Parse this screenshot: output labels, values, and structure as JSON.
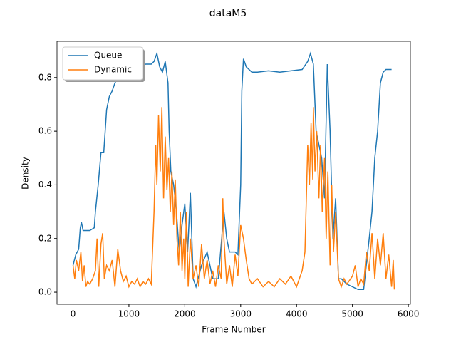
{
  "chart_data": {
    "type": "line",
    "title": "dataM5",
    "x_label": "Frame Number",
    "y_label": "Density",
    "xlim": [
      -287,
      6037
    ],
    "ylim": [
      -0.045,
      0.935
    ],
    "xticks": [
      0,
      1000,
      2000,
      3000,
      4000,
      5000,
      6000
    ],
    "yticks": [
      {
        "value": 0,
        "label": "0.0"
      },
      0.2,
      0.4,
      0.6,
      0.8
    ],
    "legend": "upper left",
    "series": [
      {
        "name": "Queue",
        "color": "#1f77b4",
        "x": [
          0,
          50,
          100,
          130,
          150,
          180,
          300,
          380,
          400,
          450,
          500,
          550,
          600,
          650,
          700,
          750,
          800,
          900,
          1000,
          1100,
          1200,
          1300,
          1400,
          1450,
          1500,
          1550,
          1600,
          1650,
          1700,
          1720,
          1750,
          1800,
          1850,
          1900,
          1950,
          2000,
          2050,
          2100,
          2150,
          2200,
          2300,
          2400,
          2500,
          2600,
          2700,
          2750,
          2800,
          2900,
          2950,
          3000,
          3020,
          3050,
          3100,
          3200,
          3300,
          3500,
          3700,
          3900,
          4100,
          4200,
          4250,
          4300,
          4350,
          4400,
          4450,
          4500,
          4550,
          4600,
          4650,
          4700,
          4750,
          4800,
          4900,
          5000,
          5100,
          5200,
          5300,
          5350,
          5400,
          5450,
          5500,
          5550,
          5600,
          5700
        ],
        "values": [
          0.1,
          0.14,
          0.16,
          0.24,
          0.26,
          0.23,
          0.23,
          0.24,
          0.3,
          0.4,
          0.52,
          0.52,
          0.68,
          0.73,
          0.75,
          0.78,
          0.8,
          0.83,
          0.84,
          0.84,
          0.84,
          0.85,
          0.85,
          0.86,
          0.89,
          0.84,
          0.82,
          0.86,
          0.78,
          0.6,
          0.45,
          0.4,
          0.3,
          0.15,
          0.25,
          0.33,
          0.15,
          0.37,
          0.05,
          0.02,
          0.1,
          0.15,
          0.05,
          0.05,
          0.3,
          0.2,
          0.15,
          0.15,
          0.14,
          0.4,
          0.75,
          0.87,
          0.84,
          0.82,
          0.82,
          0.825,
          0.82,
          0.825,
          0.83,
          0.86,
          0.89,
          0.85,
          0.6,
          0.55,
          0.5,
          0.35,
          0.85,
          0.6,
          0.2,
          0.35,
          0.05,
          0.05,
          0.03,
          0.02,
          0.01,
          0.01,
          0.2,
          0.3,
          0.5,
          0.6,
          0.78,
          0.82,
          0.83,
          0.83
        ]
      },
      {
        "name": "Dynamic",
        "color": "#ff7f0e",
        "x": [
          0,
          30,
          60,
          100,
          140,
          170,
          200,
          230,
          260,
          300,
          350,
          400,
          430,
          460,
          500,
          530,
          560,
          600,
          650,
          700,
          750,
          800,
          850,
          900,
          950,
          1000,
          1050,
          1100,
          1150,
          1200,
          1250,
          1300,
          1350,
          1400,
          1450,
          1480,
          1500,
          1530,
          1560,
          1590,
          1620,
          1650,
          1680,
          1710,
          1740,
          1770,
          1800,
          1830,
          1860,
          1890,
          1920,
          1950,
          1980,
          2000,
          2030,
          2060,
          2100,
          2150,
          2200,
          2250,
          2300,
          2350,
          2400,
          2450,
          2500,
          2550,
          2600,
          2650,
          2680,
          2700,
          2750,
          2800,
          2850,
          2900,
          2950,
          3000,
          3050,
          3100,
          3150,
          3200,
          3300,
          3400,
          3500,
          3600,
          3700,
          3800,
          3900,
          4000,
          4100,
          4150,
          4200,
          4230,
          4260,
          4290,
          4300,
          4330,
          4360,
          4400,
          4430,
          4460,
          4500,
          4530,
          4560,
          4600,
          4630,
          4660,
          4700,
          4750,
          4800,
          4850,
          4900,
          5000,
          5050,
          5100,
          5150,
          5200,
          5250,
          5300,
          5350,
          5400,
          5450,
          5500,
          5550,
          5600,
          5650,
          5700,
          5730,
          5750
        ],
        "values": [
          0.1,
          0.05,
          0.12,
          0.08,
          0.15,
          0.04,
          0.1,
          0.02,
          0.04,
          0.03,
          0.05,
          0.08,
          0.2,
          0.02,
          0.18,
          0.22,
          0.05,
          0.1,
          0.08,
          0.12,
          0.02,
          0.16,
          0.08,
          0.04,
          0.06,
          0.02,
          0.04,
          0.03,
          0.05,
          0.02,
          0.04,
          0.03,
          0.05,
          0.03,
          0.3,
          0.55,
          0.4,
          0.66,
          0.45,
          0.69,
          0.35,
          0.58,
          0.38,
          0.5,
          0.3,
          0.45,
          0.25,
          0.42,
          0.2,
          0.1,
          0.3,
          0.08,
          0.2,
          0.05,
          0.3,
          0.02,
          0.2,
          0.05,
          0.1,
          0.02,
          0.18,
          0.05,
          0.12,
          0.03,
          0.08,
          0.02,
          0.1,
          0.05,
          0.35,
          0.2,
          0.03,
          0.1,
          0.02,
          0.14,
          0.06,
          0.25,
          0.2,
          0.12,
          0.05,
          0.03,
          0.05,
          0.02,
          0.04,
          0.02,
          0.05,
          0.03,
          0.06,
          0.02,
          0.08,
          0.15,
          0.55,
          0.4,
          0.63,
          0.42,
          0.69,
          0.45,
          0.6,
          0.35,
          0.55,
          0.3,
          0.5,
          0.2,
          0.45,
          0.1,
          0.4,
          0.15,
          0.3,
          0.05,
          0.02,
          0.05,
          0.03,
          0.06,
          0.1,
          0.02,
          0.05,
          0.03,
          0.15,
          0.08,
          0.22,
          0.05,
          0.2,
          0.1,
          0.22,
          0.05,
          0.14,
          0.02,
          0.12,
          0.01
        ]
      }
    ]
  }
}
